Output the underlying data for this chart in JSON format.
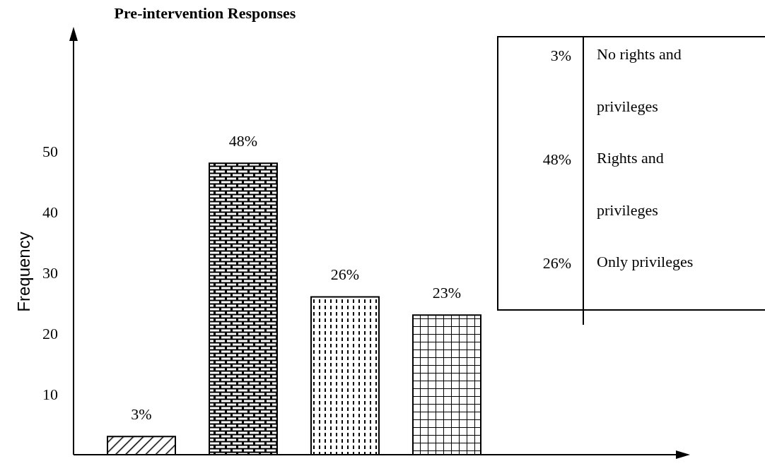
{
  "chart_data": {
    "type": "bar",
    "title": "Pre-intervention Responses",
    "ylabel": "Frequency",
    "categories": [
      null,
      null,
      null,
      null
    ],
    "values": [
      3,
      48,
      26,
      23
    ],
    "value_labels": [
      "3%",
      "48%",
      "26%",
      "23%"
    ],
    "color": "#000000",
    "ylim": [
      0,
      70
    ],
    "yticks": [
      10,
      20,
      30,
      40,
      50
    ],
    "grid": false,
    "annotations": [
      "3%",
      "No rights and privileges",
      "48%",
      "Rights and privileges",
      "26%",
      "Only privileges"
    ]
  }
}
